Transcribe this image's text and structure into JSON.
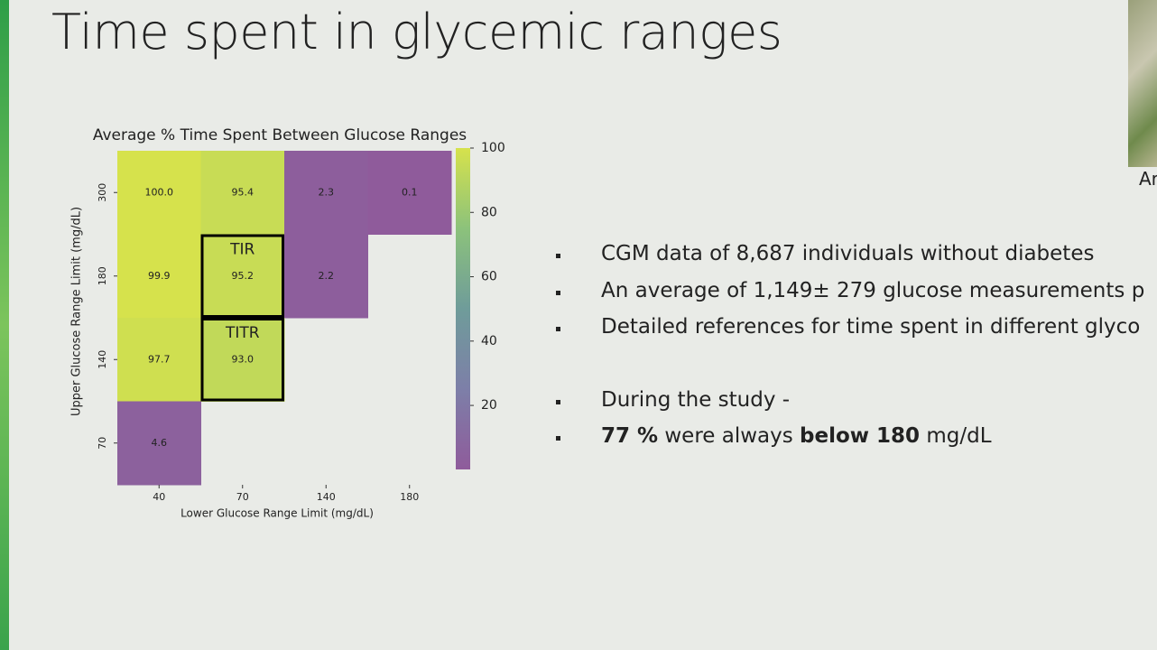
{
  "slide_title": "Time spent in glycemic ranges",
  "chart_data": {
    "type": "heatmap",
    "title": "Average % Time Spent Between Glucose Ranges",
    "x_label": "Lower Glucose Range Limit (mg/dL)",
    "y_label": "Upper Glucose Range Limit (mg/dL)",
    "x_categories": [
      "40",
      "70",
      "140",
      "180"
    ],
    "y_categories": [
      "300",
      "180",
      "140",
      "70"
    ],
    "values": [
      [
        100,
        95.4,
        2.3,
        0.1
      ],
      [
        99.9,
        95.2,
        2.2,
        null
      ],
      [
        97.7,
        93,
        null,
        null
      ],
      [
        4.6,
        null,
        null,
        null
      ]
    ],
    "value_labels": [
      [
        "100.0",
        "95.4",
        "2.3",
        "0.1"
      ],
      [
        "99.9",
        "95.2",
        "2.2",
        null
      ],
      [
        "97.7",
        "93.0",
        null,
        null
      ],
      [
        "4.6",
        null,
        null,
        null
      ]
    ],
    "clim": [
      0.1,
      100
    ],
    "cticks": [
      20,
      40,
      60,
      80,
      100
    ],
    "colormap": [
      "#8f5b9b",
      "#7d7fa8",
      "#6f9c9a",
      "#8cc27b",
      "#d6e24c"
    ],
    "annotations": [
      "TIR",
      "TITR"
    ]
  },
  "bullet_groups": [
    [
      {
        "runs": [
          {
            "text": "CGM data of 8,687 individuals without diabetes",
            "bold": false
          }
        ]
      },
      {
        "runs": [
          {
            "text": "An average of 1,149± 279 glucose measurements p",
            "bold": false
          }
        ]
      },
      {
        "runs": [
          {
            "text": "Detailed references for time spent in different glyco",
            "bold": false
          }
        ]
      }
    ],
    [
      {
        "runs": [
          {
            "text": "During the study -",
            "bold": false
          }
        ]
      },
      {
        "runs": [
          {
            "text": "77 %",
            "bold": true
          },
          {
            "text": " were always ",
            "bold": false
          },
          {
            "text": "below 180",
            "bold": true
          },
          {
            "text": " mg/dL",
            "bold": false
          }
        ]
      }
    ]
  ],
  "webcam_label": "Ar"
}
